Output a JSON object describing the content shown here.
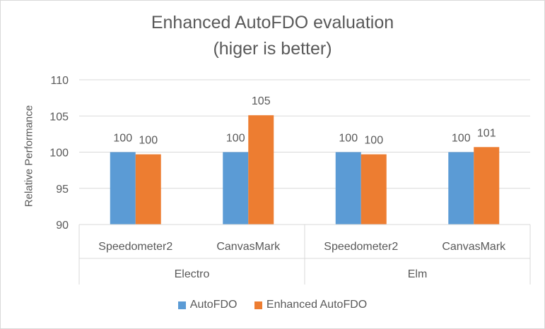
{
  "chart_data": {
    "type": "bar",
    "title_lines": [
      "Enhanced  AutoFDO evaluation",
      "(higer is better)"
    ],
    "xlabel": "",
    "ylabel": "Relative Performance",
    "ylim": [
      90,
      110
    ],
    "yticks": [
      90,
      95,
      100,
      105,
      110
    ],
    "grid": true,
    "legend_position": "bottom",
    "groups": [
      {
        "label": "Electro",
        "categories": [
          "Speedometer2",
          "CanvasMark"
        ]
      },
      {
        "label": "Elm",
        "categories": [
          "Speedometer2",
          "CanvasMark"
        ]
      }
    ],
    "series": [
      {
        "name": "AutoFDO",
        "color": "#5b9bd5",
        "values": [
          100,
          100,
          100,
          100
        ],
        "data_labels": [
          "100",
          "100",
          "100",
          "100"
        ]
      },
      {
        "name": "Enhanced AutoFDO",
        "color": "#ed7d31",
        "values": [
          99.7,
          105.1,
          99.7,
          100.7
        ],
        "data_labels": [
          "100",
          "105",
          "100",
          "101"
        ]
      }
    ]
  }
}
